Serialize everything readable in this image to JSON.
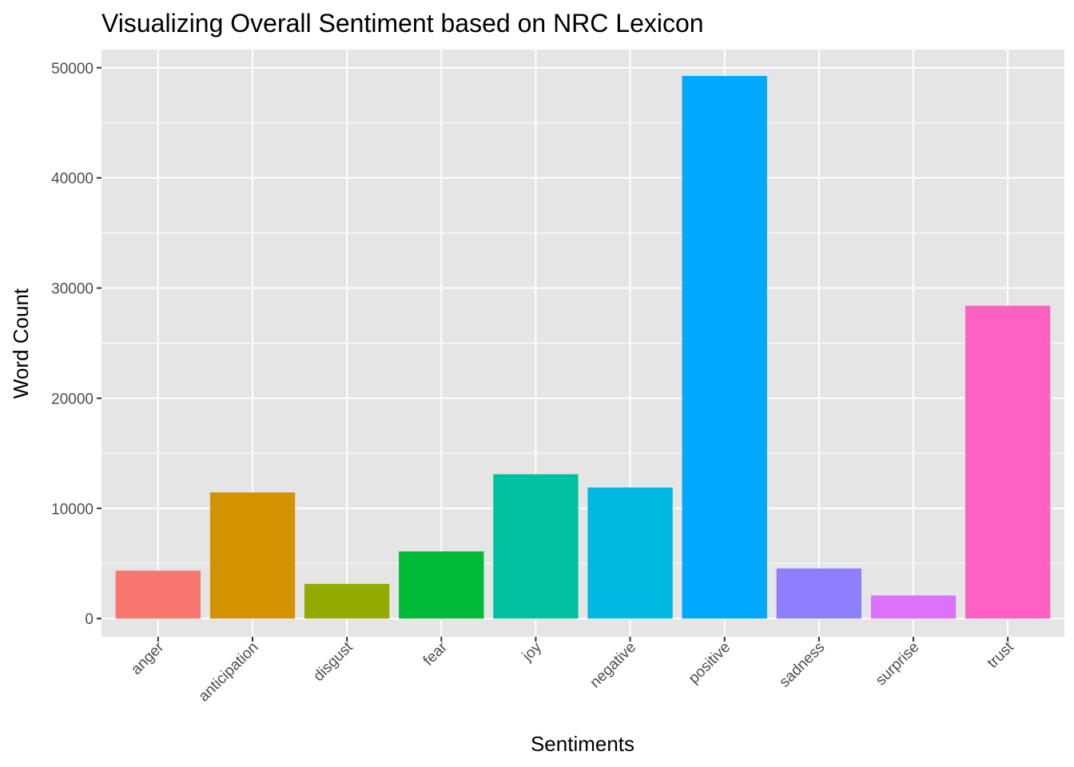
{
  "chart_data": {
    "type": "bar",
    "title": "Visualizing Overall Sentiment based on NRC Lexicon",
    "xlabel": "Sentiments",
    "ylabel": "Word Count",
    "categories": [
      "anger",
      "anticipation",
      "disgust",
      "fear",
      "joy",
      "negative",
      "positive",
      "sadness",
      "surprise",
      "trust"
    ],
    "values": [
      4350,
      11450,
      3150,
      6100,
      13100,
      11900,
      49250,
      4550,
      2100,
      28400
    ],
    "colors": [
      "#F8766D",
      "#D39200",
      "#93AA00",
      "#00BA38",
      "#00C19F",
      "#00B9E3",
      "#00A9FF",
      "#8E7FFF",
      "#DB72FB",
      "#FF61C3"
    ],
    "ylim": [
      -1650,
      51650
    ],
    "yticks": [
      0,
      10000,
      20000,
      30000,
      40000,
      50000
    ],
    "ytick_labels": [
      "0",
      "10000",
      "20000",
      "30000",
      "40000",
      "50000"
    ],
    "panel_background": "#E5E5E5",
    "grid": true,
    "legend": "none"
  }
}
